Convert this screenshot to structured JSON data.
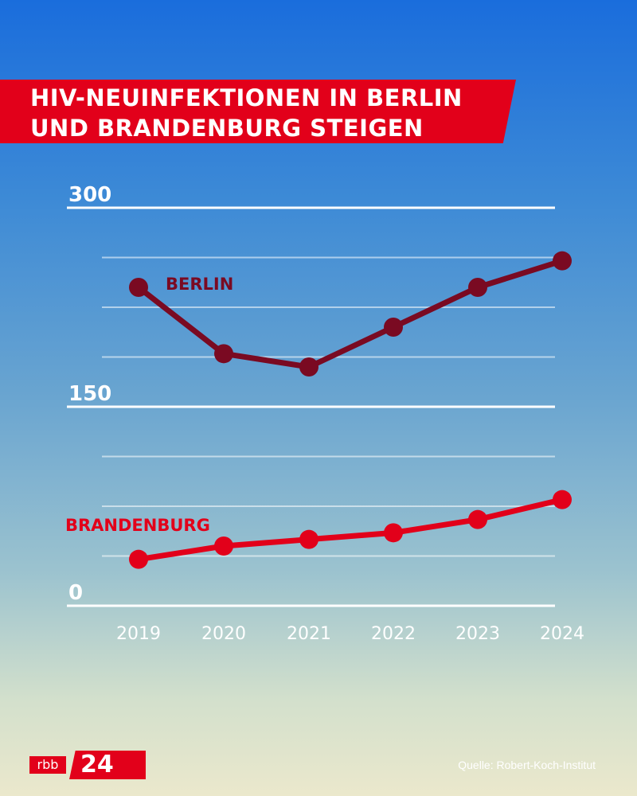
{
  "header": {
    "title_line1": "HIV-NEUINFEKTIONEN IN BERLIN",
    "title_line2": "UND BRANDENBURG STEIGEN"
  },
  "footer": {
    "source": "Quelle: Robert-Koch-Institut",
    "logo_rbb": "rbb",
    "logo_24": "24"
  },
  "chart_data": {
    "type": "line",
    "title": "HIV-NEUINFEKTIONEN IN BERLIN UND BRANDENBURG STEIGEN",
    "x": [
      "2019",
      "2020",
      "2021",
      "2022",
      "2023",
      "2024"
    ],
    "ylim": [
      0,
      300
    ],
    "yticks": [
      0,
      150,
      300
    ],
    "grid": true,
    "series": [
      {
        "name": "BERLIN",
        "color": "#7a0a22",
        "values": [
          240,
          190,
          180,
          210,
          240,
          260
        ]
      },
      {
        "name": "BRANDENBURG",
        "color": "#e2001a",
        "values": [
          35,
          45,
          50,
          55,
          65,
          80
        ]
      }
    ]
  }
}
